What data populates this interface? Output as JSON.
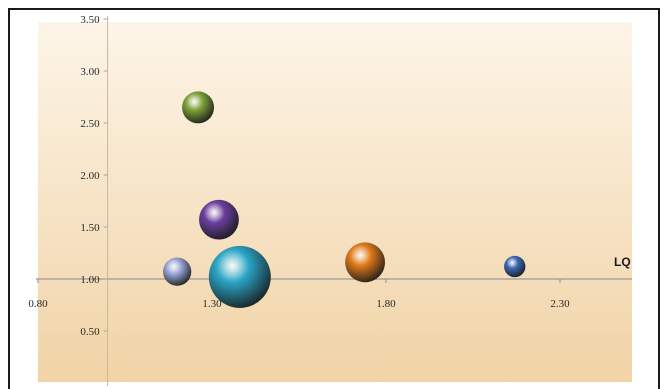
{
  "chart_data": {
    "type": "bubble",
    "x_axis": {
      "label": "LQ",
      "range": [
        0.8,
        2.6
      ],
      "ticks": [
        0.8,
        1.3,
        1.8,
        2.3
      ],
      "tick_labels": [
        "0.80",
        "1.30",
        "1.80",
        "2.30"
      ]
    },
    "y_axis": {
      "range": [
        0.0,
        3.5
      ],
      "ticks": [
        0.5,
        1.0,
        1.5,
        2.0,
        2.5,
        3.0,
        3.5
      ],
      "tick_labels": [
        "0.50",
        "1.00",
        "1.50",
        "2.00",
        "2.50",
        "3.00",
        "3.50"
      ]
    },
    "x_axis_crosses_y_at": 1.0,
    "y_axis_crosses_x_at": 1.0,
    "grid": false,
    "legend": "none",
    "points": [
      {
        "x": 1.26,
        "y": 2.65,
        "size": 9,
        "color": "#7fa33a"
      },
      {
        "x": 1.32,
        "y": 1.57,
        "size": 14,
        "color": "#6a3f9e"
      },
      {
        "x": 1.2,
        "y": 1.07,
        "size": 7,
        "color": "#9aa8d8"
      },
      {
        "x": 1.38,
        "y": 1.02,
        "size": 34,
        "color": "#2aa6c8"
      },
      {
        "x": 1.74,
        "y": 1.16,
        "size": 14,
        "color": "#e07a18"
      },
      {
        "x": 2.17,
        "y": 1.12,
        "size": 4,
        "color": "#3a6ab8"
      }
    ],
    "background_gradient": [
      "#fdf5e8",
      "#f1d3a6"
    ]
  }
}
